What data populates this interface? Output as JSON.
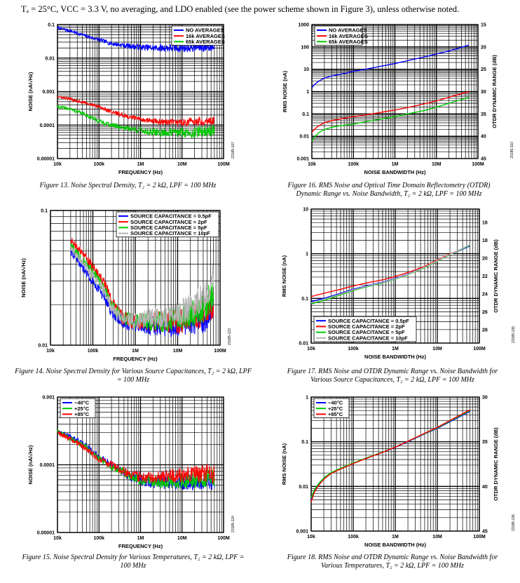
{
  "header": "Tₐ = 25°C, VCC = 3.3 V, no averaging, and LDO enabled (see the power scheme shown in Figure 3), unless otherwise noted.",
  "colors": {
    "blue": "#0000ff",
    "red": "#ff0000",
    "green": "#00c800",
    "gray": "#b4b4b4"
  },
  "chart_data": [
    {
      "id": "fig13",
      "type": "line",
      "caption": "Figure 13. Noise Spectral Density, T₂ = 2 kΩ, LPF = 100 MHz",
      "xlabel": "FREQUENCY (Hz)",
      "ylabel": "NOISE (nA/√Hz)",
      "xscale": "log",
      "yscale": "log",
      "xlim": [
        10000,
        100000000
      ],
      "ylim": [
        1e-05,
        0.1
      ],
      "xticks": [
        "10k",
        "100k",
        "1M",
        "10M",
        "100M"
      ],
      "yticks": [
        "0.00001",
        "0.0001",
        "0.001",
        "0.01",
        "0.1"
      ],
      "legend_position": "top-right",
      "fig_id": "23185-107",
      "series": [
        {
          "name": "NO AVERAGES",
          "color": "blue",
          "noise": 0.08,
          "x": [
            10000,
            20000,
            50000,
            100000,
            200000,
            500000,
            1000000,
            2000000,
            5000000,
            10000000,
            20000000,
            60000000
          ],
          "y": [
            0.08,
            0.065,
            0.045,
            0.035,
            0.027,
            0.023,
            0.021,
            0.02,
            0.02,
            0.02,
            0.021,
            0.022
          ]
        },
        {
          "name": "16k AVERAGES",
          "color": "red",
          "noise": 0.07,
          "x": [
            10000,
            20000,
            50000,
            100000,
            200000,
            500000,
            1000000,
            2000000,
            5000000,
            10000000,
            20000000,
            60000000
          ],
          "y": [
            0.0007,
            0.0006,
            0.00045,
            0.00035,
            0.00025,
            0.00018,
            0.00015,
            0.00013,
            0.00012,
            0.00012,
            0.00013,
            0.00014
          ]
        },
        {
          "name": "65k AVERAGES",
          "color": "green",
          "noise": 0.09,
          "x": [
            10000,
            20000,
            50000,
            100000,
            200000,
            500000,
            1000000,
            2000000,
            5000000,
            10000000,
            20000000,
            60000000
          ],
          "y": [
            0.00035,
            0.0003,
            0.0002,
            0.00013,
            0.0001,
            8e-05,
            7e-05,
            6e-05,
            6e-05,
            6e-05,
            6e-05,
            7e-05
          ]
        }
      ]
    },
    {
      "id": "fig16",
      "type": "line",
      "caption": "Figure 16. RMS Noise and Optical Time Domain Reflectometry (OTDR) Dynamic Range vs. Noise Bandwidth, T₂ = 2 kΩ, LPF = 100 MHz",
      "xlabel": "NOISE BANDWIDTH (Hz)",
      "ylabel": "RMS NOISE (nA)",
      "y2label": "OTDR DYNAMIC RANGE (dB)",
      "xscale": "log",
      "yscale": "log",
      "xlim": [
        10000,
        100000000
      ],
      "ylim": [
        0.001,
        1000
      ],
      "xticks": [
        "10k",
        "100k",
        "1M",
        "10M",
        "100M"
      ],
      "yticks": [
        "0.001",
        "0.01",
        "0.1",
        "1",
        "10",
        "100",
        "1000"
      ],
      "y2lim": [
        15,
        45
      ],
      "y2ticks": [
        "15",
        "20",
        "25",
        "30",
        "35",
        "40",
        "45"
      ],
      "legend_position": "top-left",
      "fig_id": "23185-110",
      "series": [
        {
          "name": "NO AVERAGES",
          "color": "blue",
          "noise": 0,
          "x": [
            10000,
            12000,
            15000,
            20000,
            30000,
            50000,
            100000,
            200000,
            500000,
            1000000,
            2000000,
            5000000,
            10000000,
            20000000,
            60000000
          ],
          "y": [
            1.5,
            2.2,
            3,
            4,
            5,
            6,
            8,
            10,
            14,
            18,
            24,
            35,
            48,
            65,
            120
          ]
        },
        {
          "name": "16k AVERAGES",
          "color": "red",
          "noise": 0,
          "x": [
            10000,
            12000,
            15000,
            20000,
            30000,
            50000,
            100000,
            200000,
            500000,
            1000000,
            2000000,
            5000000,
            10000000,
            20000000,
            60000000
          ],
          "y": [
            0.015,
            0.022,
            0.03,
            0.04,
            0.05,
            0.06,
            0.075,
            0.09,
            0.12,
            0.15,
            0.19,
            0.28,
            0.38,
            0.55,
            1
          ]
        },
        {
          "name": "65k AVERAGES",
          "color": "green",
          "noise": 0,
          "x": [
            10000,
            12000,
            15000,
            20000,
            30000,
            50000,
            100000,
            200000,
            500000,
            1000000,
            2000000,
            5000000,
            10000000,
            20000000,
            60000000
          ],
          "y": [
            0.006,
            0.01,
            0.015,
            0.02,
            0.025,
            0.03,
            0.035,
            0.045,
            0.06,
            0.075,
            0.1,
            0.14,
            0.2,
            0.3,
            0.55
          ]
        }
      ]
    },
    {
      "id": "fig14",
      "type": "line",
      "caption": "Figure 14. Noise Spectral Density for Various Source Capacitances, T₂ = 2 kΩ, LPF = 100 MHz",
      "xlabel": "FREQUENCY (Hz)",
      "ylabel": "NOISE (nA/√Hz)",
      "xscale": "log",
      "yscale": "log",
      "xlim": [
        10000,
        100000000
      ],
      "ylim": [
        0.01,
        0.1
      ],
      "xticks": [
        "10k",
        "100k",
        "1M",
        "10M",
        "100M"
      ],
      "yticks": [
        "0.01",
        "0.1"
      ],
      "legend_position": "top-right",
      "fig_id": "23185-123",
      "series": [
        {
          "name": "SOURCE CAPACITANCE = 0.5pF",
          "color": "blue",
          "noise": 0.06,
          "x": [
            30000,
            50000,
            100000,
            200000,
            300000,
            500000,
            1000000,
            2000000,
            5000000,
            10000000,
            20000000,
            40000000,
            70000000
          ],
          "y": [
            0.05,
            0.04,
            0.03,
            0.022,
            0.017,
            0.015,
            0.014,
            0.014,
            0.014,
            0.014,
            0.015,
            0.016,
            0.018
          ]
        },
        {
          "name": "SOURCE CAPACITANCE = 2pF",
          "color": "red",
          "noise": 0.06,
          "x": [
            30000,
            50000,
            100000,
            200000,
            300000,
            500000,
            1000000,
            2000000,
            5000000,
            10000000,
            20000000,
            40000000,
            70000000
          ],
          "y": [
            0.06,
            0.05,
            0.038,
            0.028,
            0.02,
            0.016,
            0.015,
            0.015,
            0.015,
            0.015,
            0.016,
            0.018,
            0.021
          ]
        },
        {
          "name": "SOURCE CAPACITANCE = 5pF",
          "color": "green",
          "noise": 0.06,
          "x": [
            30000,
            50000,
            100000,
            200000,
            300000,
            500000,
            1000000,
            2000000,
            5000000,
            10000000,
            20000000,
            40000000,
            70000000
          ],
          "y": [
            0.055,
            0.045,
            0.035,
            0.025,
            0.019,
            0.016,
            0.015,
            0.015,
            0.015,
            0.016,
            0.017,
            0.019,
            0.024
          ]
        },
        {
          "name": "SOURCE CAPACITANCE = 10pF",
          "color": "gray",
          "noise": 0.06,
          "x": [
            30000,
            50000,
            100000,
            200000,
            300000,
            500000,
            1000000,
            2000000,
            5000000,
            10000000,
            20000000,
            40000000,
            70000000
          ],
          "y": [
            0.052,
            0.043,
            0.033,
            0.024,
            0.018,
            0.016,
            0.015,
            0.016,
            0.016,
            0.017,
            0.019,
            0.023,
            0.03
          ]
        }
      ]
    },
    {
      "id": "fig17",
      "type": "line",
      "caption": "Figure 17. RMS Noise and OTDR Dynamic Range vs. Noise Bandwidth for Various Source Capacitances, T₂ = 2 kΩ, LPF = 100 MHz",
      "xlabel": "NOISE BANDWIDTH (Hz)",
      "ylabel": "RMS NOISE (nA)",
      "y2label": "OTDR DYNAMIC RANGE (dB)",
      "xscale": "log",
      "yscale": "log",
      "xlim": [
        10000,
        100000000
      ],
      "ylim": [
        0.01,
        10
      ],
      "xticks": [
        "10k",
        "100k",
        "1M",
        "10M",
        "100M"
      ],
      "yticks": [
        "0.01",
        "0.1",
        "1",
        "10"
      ],
      "y2lim": [
        14.5,
        29.5
      ],
      "y2ticks": [
        "16",
        "18",
        "20",
        "22",
        "24",
        "26",
        "28"
      ],
      "legend_position": "bottom-left",
      "fig_id": "23185-135",
      "series": [
        {
          "name": "SOURCE CAPACITANCE = 0.5pF",
          "color": "blue",
          "noise": 0,
          "x": [
            10000,
            20000,
            50000,
            100000,
            200000,
            500000,
            1000000,
            2000000,
            5000000,
            10000000,
            20000000,
            60000000
          ],
          "y": [
            0.085,
            0.1,
            0.13,
            0.16,
            0.19,
            0.23,
            0.28,
            0.35,
            0.5,
            0.7,
            0.95,
            1.5
          ]
        },
        {
          "name": "SOURCE CAPACITANCE = 2pF",
          "color": "red",
          "noise": 0,
          "x": [
            10000,
            20000,
            50000,
            100000,
            200000,
            500000,
            1000000,
            2000000,
            5000000,
            10000000,
            20000000,
            60000000
          ],
          "y": [
            0.11,
            0.13,
            0.16,
            0.19,
            0.22,
            0.26,
            0.31,
            0.38,
            0.52,
            0.72,
            0.98,
            1.55
          ]
        },
        {
          "name": "SOURCE CAPACITANCE = 5pF",
          "color": "green",
          "noise": 0,
          "x": [
            10000,
            20000,
            50000,
            100000,
            200000,
            500000,
            1000000,
            2000000,
            5000000,
            10000000,
            20000000,
            60000000
          ],
          "y": [
            0.075,
            0.09,
            0.12,
            0.15,
            0.18,
            0.22,
            0.27,
            0.34,
            0.49,
            0.69,
            0.95,
            1.55
          ]
        },
        {
          "name": "SOURCE CAPACITANCE = 10pF",
          "color": "gray",
          "noise": 0,
          "x": [
            10000,
            20000,
            50000,
            100000,
            200000,
            500000,
            1000000,
            2000000,
            5000000,
            10000000,
            20000000,
            60000000
          ],
          "y": [
            0.08,
            0.095,
            0.125,
            0.155,
            0.185,
            0.225,
            0.275,
            0.345,
            0.5,
            0.7,
            0.96,
            1.6
          ]
        }
      ]
    },
    {
      "id": "fig15",
      "type": "line",
      "caption": "Figure 15. Noise Spectral Density for Various Temperatures, T₂ = 2 kΩ, LPF = 100 MHz",
      "xlabel": "FREQUENCY (Hz)",
      "ylabel": "NOISE (nA/√Hz)",
      "xscale": "log",
      "yscale": "log",
      "xlim": [
        10000,
        100000000
      ],
      "ylim": [
        1e-05,
        0.001
      ],
      "xticks": [
        "10k",
        "100k",
        "1M",
        "10M",
        "100M"
      ],
      "yticks": [
        "0.00001",
        "0.0001",
        "0.001"
      ],
      "legend_position": "top-left",
      "fig_id": "23185-124",
      "series": [
        {
          "name": "−40°C",
          "color": "blue",
          "noise": 0.07,
          "x": [
            10000,
            20000,
            50000,
            100000,
            200000,
            500000,
            1000000,
            2000000,
            5000000,
            10000000,
            20000000,
            60000000
          ],
          "y": [
            0.00032,
            0.00026,
            0.00019,
            0.00013,
            0.0001,
            7e-05,
            6e-05,
            5.5e-05,
            5.5e-05,
            5.5e-05,
            5.6e-05,
            5.8e-05
          ]
        },
        {
          "name": "+25°C",
          "color": "green",
          "noise": 0.07,
          "x": [
            10000,
            20000,
            50000,
            100000,
            200000,
            500000,
            1000000,
            2000000,
            5000000,
            10000000,
            20000000,
            60000000
          ],
          "y": [
            0.00031,
            0.00025,
            0.00018,
            0.00012,
            9.5e-05,
            7e-05,
            6e-05,
            5.6e-05,
            5.7e-05,
            5.8e-05,
            6e-05,
            6.2e-05
          ]
        },
        {
          "name": "+85°C",
          "color": "red",
          "noise": 0.07,
          "x": [
            10000,
            20000,
            50000,
            100000,
            200000,
            500000,
            1000000,
            2000000,
            5000000,
            10000000,
            20000000,
            60000000
          ],
          "y": [
            0.0003,
            0.00024,
            0.00017,
            0.00012,
            0.0001,
            7.5e-05,
            6.5e-05,
            6.5e-05,
            6.8e-05,
            7e-05,
            7.2e-05,
            7.5e-05
          ]
        }
      ]
    },
    {
      "id": "fig18",
      "type": "line",
      "caption": "Figure 18. RMS Noise and OTDR Dynamic Range vs. Noise Bandwidth for Various Temperatures, T₂ = 2 kΩ, LPF = 100 MHz",
      "xlabel": "NOISE BANDWIDTH (Hz)",
      "ylabel": "RMS NOISE (nA)",
      "y2label": "OTDR DYNAMIC RANGE (dB)",
      "xscale": "log",
      "yscale": "log",
      "xlim": [
        10000,
        100000000
      ],
      "ylim": [
        0.001,
        1
      ],
      "xticks": [
        "10k",
        "100k",
        "1M",
        "10M",
        "100M"
      ],
      "yticks": [
        "0.001",
        "0.01",
        "0.1",
        "1"
      ],
      "y2lim": [
        30,
        45
      ],
      "y2ticks": [
        "30",
        "35",
        "40",
        "45"
      ],
      "legend_position": "top-left",
      "fig_id": "23185-136",
      "series": [
        {
          "name": "−40°C",
          "color": "blue",
          "noise": 0,
          "x": [
            10000,
            12000,
            15000,
            20000,
            30000,
            50000,
            100000,
            200000,
            500000,
            1000000,
            2000000,
            5000000,
            10000000,
            20000000,
            60000000
          ],
          "y": [
            0.005,
            0.008,
            0.011,
            0.015,
            0.02,
            0.025,
            0.033,
            0.042,
            0.058,
            0.075,
            0.1,
            0.15,
            0.2,
            0.28,
            0.48
          ]
        },
        {
          "name": "+25°C",
          "color": "green",
          "noise": 0,
          "x": [
            10000,
            12000,
            15000,
            20000,
            30000,
            50000,
            100000,
            200000,
            500000,
            1000000,
            2000000,
            5000000,
            10000000,
            20000000,
            60000000
          ],
          "y": [
            0.0055,
            0.0085,
            0.0115,
            0.0155,
            0.0205,
            0.0255,
            0.0335,
            0.043,
            0.059,
            0.076,
            0.102,
            0.152,
            0.205,
            0.29,
            0.5
          ]
        },
        {
          "name": "+85°C",
          "color": "red",
          "noise": 0,
          "x": [
            10000,
            12000,
            15000,
            20000,
            30000,
            50000,
            100000,
            200000,
            500000,
            1000000,
            2000000,
            5000000,
            10000000,
            20000000,
            60000000
          ],
          "y": [
            0.0045,
            0.0075,
            0.0105,
            0.0145,
            0.0195,
            0.0245,
            0.0325,
            0.042,
            0.058,
            0.076,
            0.103,
            0.155,
            0.21,
            0.3,
            0.52
          ]
        }
      ]
    }
  ]
}
